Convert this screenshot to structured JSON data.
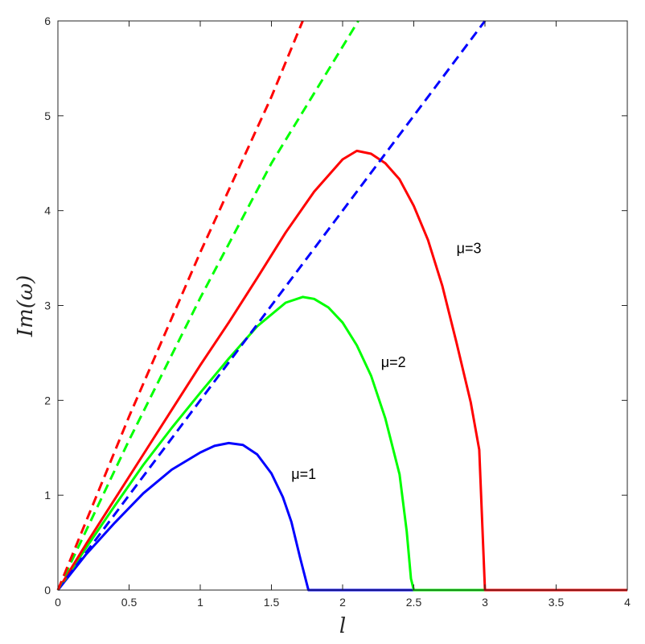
{
  "chart_data": {
    "type": "line",
    "title": "",
    "xlabel": "l",
    "ylabel": "Im(ω)",
    "xlim": [
      0,
      4
    ],
    "ylim": [
      0,
      6
    ],
    "xticks": [
      0,
      0.5,
      1,
      1.5,
      2,
      2.5,
      3,
      3.5,
      4
    ],
    "xtick_labels": [
      "0",
      "0.5",
      "1",
      "1.5",
      "2",
      "2.5",
      "3",
      "3.5",
      "4"
    ],
    "yticks": [
      0,
      1,
      2,
      3,
      4,
      5,
      6
    ],
    "ytick_labels": [
      "0",
      "1",
      "2",
      "3",
      "4",
      "5",
      "6"
    ],
    "grid": false,
    "box": true,
    "series": [
      {
        "color": "#0000ff",
        "style": "solid",
        "width": 3,
        "x": [
          0,
          0.2,
          0.4,
          0.6,
          0.8,
          1.0,
          1.1,
          1.2,
          1.3,
          1.4,
          1.5,
          1.58,
          1.64,
          1.7,
          1.76,
          2.0,
          4.0
        ],
        "y": [
          0,
          0.38,
          0.71,
          1.02,
          1.27,
          1.45,
          1.52,
          1.55,
          1.53,
          1.43,
          1.23,
          0.98,
          0.72,
          0.35,
          0,
          0,
          0
        ]
      },
      {
        "color": "#00ff00",
        "style": "solid",
        "width": 3,
        "x": [
          0,
          0.2,
          0.4,
          0.6,
          0.8,
          1.0,
          1.2,
          1.4,
          1.6,
          1.72,
          1.8,
          1.9,
          2.0,
          2.1,
          2.2,
          2.3,
          2.4,
          2.45,
          2.48,
          2.5,
          3.0,
          4.0
        ],
        "y": [
          0,
          0.45,
          0.89,
          1.32,
          1.71,
          2.08,
          2.44,
          2.78,
          3.03,
          3.09,
          3.07,
          2.98,
          2.82,
          2.58,
          2.26,
          1.81,
          1.22,
          0.62,
          0.12,
          0,
          0,
          0
        ]
      },
      {
        "color": "#ff0000",
        "style": "solid",
        "width": 3,
        "x": [
          0,
          0.2,
          0.4,
          0.6,
          0.8,
          1.0,
          1.2,
          1.4,
          1.6,
          1.8,
          2.0,
          2.1,
          2.2,
          2.3,
          2.4,
          2.5,
          2.6,
          2.7,
          2.8,
          2.9,
          2.96,
          3.0,
          3.5,
          4.0
        ],
        "y": [
          0,
          0.49,
          0.96,
          1.43,
          1.9,
          2.37,
          2.82,
          3.29,
          3.77,
          4.2,
          4.54,
          4.63,
          4.6,
          4.5,
          4.33,
          4.05,
          3.69,
          3.21,
          2.61,
          1.98,
          1.48,
          0,
          0,
          0
        ]
      },
      {
        "color": "#0000ff",
        "style": "dashed",
        "width": 3,
        "x": [
          0,
          3.0
        ],
        "y": [
          0,
          6.0
        ]
      },
      {
        "color": "#00ff00",
        "style": "dashed",
        "width": 3,
        "x": [
          0,
          0.5,
          1.0,
          1.5,
          2.11
        ],
        "y": [
          0,
          1.58,
          3.08,
          4.5,
          6.0
        ]
      },
      {
        "color": "#ff0000",
        "style": "dashed",
        "width": 3,
        "x": [
          0,
          0.5,
          1.0,
          1.5,
          1.72
        ],
        "y": [
          0,
          1.83,
          3.56,
          5.2,
          6.0
        ]
      }
    ],
    "annotations": [
      {
        "text": "μ=1",
        "x": 1.64,
        "y": 1.17
      },
      {
        "text": "μ=2",
        "x": 2.27,
        "y": 2.35
      },
      {
        "text": "μ=3",
        "x": 2.8,
        "y": 3.55
      }
    ]
  }
}
